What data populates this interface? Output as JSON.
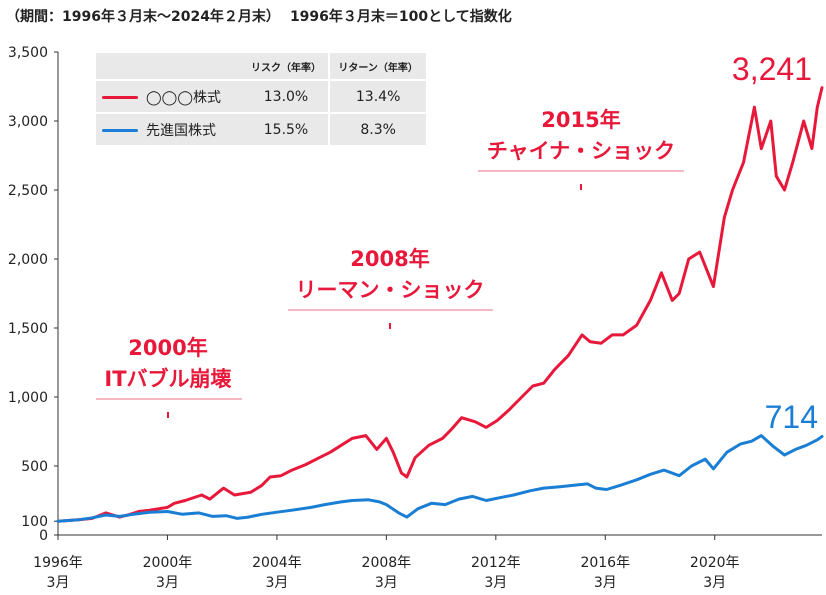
{
  "header": {
    "period": "（期間：1996年３月末〜2024年２月末）",
    "base": "1996年３月末＝100として指数化"
  },
  "legend": {
    "col_risk": "リスク（年率）",
    "col_return": "リターン（年率）",
    "rows": [
      {
        "name": "◯◯◯株式",
        "risk": "13.0%",
        "ret": "13.4%",
        "color": "#e8183a"
      },
      {
        "name": "先進国株式",
        "risk": "15.5%",
        "ret": "8.3%",
        "color": "#1a7fd4"
      }
    ]
  },
  "annotations": [
    {
      "line1": "2000年",
      "line2": "ITバブル崩壊"
    },
    {
      "line1": "2008年",
      "line2": "リーマン・ショック"
    },
    {
      "line1": "2015年",
      "line2": "チャイナ・ショック"
    }
  ],
  "end_labels": {
    "red": "3,241",
    "blue": "714"
  },
  "chart_data": {
    "type": "line",
    "ylim": [
      0,
      3500
    ],
    "yticks": [
      0,
      100,
      500,
      1000,
      1500,
      2000,
      2500,
      3000,
      3500
    ],
    "ytick_labels": [
      "0",
      "100",
      "500",
      "1,000",
      "1,500",
      "2,000",
      "2,500",
      "3,000",
      "3,500"
    ],
    "xticks": [
      1996.25,
      2000.25,
      2004.25,
      2008.25,
      2012.25,
      2016.25,
      2020.25
    ],
    "xtick_labels": [
      [
        "1996年",
        "3月"
      ],
      [
        "2000年",
        "3月"
      ],
      [
        "2004年",
        "3月"
      ],
      [
        "2008年",
        "3月"
      ],
      [
        "2012年",
        "3月"
      ],
      [
        "2016年",
        "3月"
      ],
      [
        "2020年",
        "3月"
      ]
    ],
    "xlim": [
      1996.25,
      2024.17
    ],
    "series": [
      {
        "name": "◯◯◯株式",
        "color": "#e8183a",
        "x": [
          1996.25,
          1997.0,
          1997.5,
          1998.0,
          1998.5,
          1998.8,
          1999.2,
          1999.6,
          2000.25,
          2000.5,
          2000.9,
          2001.5,
          2001.8,
          2002.3,
          2002.7,
          2003.0,
          2003.3,
          2003.7,
          2004.0,
          2004.4,
          2004.8,
          2005.3,
          2005.8,
          2006.2,
          2006.6,
          2007.0,
          2007.5,
          2007.9,
          2008.25,
          2008.5,
          2008.8,
          2009.0,
          2009.3,
          2009.8,
          2010.3,
          2010.6,
          2011.0,
          2011.5,
          2011.9,
          2012.3,
          2012.7,
          2013.2,
          2013.6,
          2014.0,
          2014.4,
          2014.9,
          2015.4,
          2015.7,
          2016.1,
          2016.5,
          2016.9,
          2017.4,
          2017.9,
          2018.3,
          2018.7,
          2018.95,
          2019.3,
          2019.7,
          2020.2,
          2020.6,
          2020.9,
          2021.3,
          2021.7,
          2021.95,
          2022.3,
          2022.5,
          2022.8,
          2023.1,
          2023.5,
          2023.8,
          2024.0,
          2024.17
        ],
        "values": [
          100,
          110,
          120,
          160,
          130,
          145,
          170,
          180,
          200,
          230,
          250,
          290,
          260,
          340,
          290,
          300,
          310,
          360,
          420,
          430,
          470,
          510,
          560,
          600,
          650,
          700,
          720,
          620,
          700,
          600,
          450,
          420,
          560,
          650,
          700,
          760,
          850,
          820,
          780,
          830,
          900,
          1000,
          1080,
          1100,
          1200,
          1300,
          1450,
          1400,
          1390,
          1450,
          1450,
          1520,
          1700,
          1900,
          1700,
          1750,
          2000,
          2050,
          1800,
          2300,
          2500,
          2700,
          3100,
          2800,
          3000,
          2600,
          2500,
          2700,
          3000,
          2800,
          3100,
          3241
        ]
      },
      {
        "name": "先進国株式",
        "color": "#1a7fd4",
        "x": [
          1996.25,
          1997.0,
          1997.5,
          1998.0,
          1998.5,
          1999.0,
          1999.6,
          2000.25,
          2000.8,
          2001.4,
          2001.9,
          2002.4,
          2002.8,
          2003.2,
          2003.7,
          2004.25,
          2004.8,
          2005.5,
          2006.0,
          2006.6,
          2007.0,
          2007.6,
          2008.0,
          2008.25,
          2008.7,
          2009.0,
          2009.4,
          2009.9,
          2010.4,
          2010.9,
          2011.4,
          2011.9,
          2012.4,
          2012.9,
          2013.5,
          2014.0,
          2014.6,
          2015.1,
          2015.6,
          2015.9,
          2016.3,
          2016.8,
          2017.4,
          2017.9,
          2018.4,
          2018.95,
          2019.4,
          2019.9,
          2020.2,
          2020.7,
          2021.2,
          2021.6,
          2021.95,
          2022.4,
          2022.8,
          2023.2,
          2023.6,
          2024.0,
          2024.17
        ],
        "values": [
          100,
          110,
          125,
          145,
          135,
          150,
          165,
          170,
          150,
          160,
          135,
          140,
          120,
          130,
          150,
          165,
          180,
          200,
          220,
          240,
          250,
          255,
          240,
          220,
          160,
          130,
          190,
          230,
          220,
          260,
          280,
          250,
          270,
          290,
          320,
          340,
          350,
          360,
          370,
          340,
          330,
          360,
          400,
          440,
          470,
          430,
          500,
          550,
          480,
          600,
          660,
          680,
          720,
          640,
          580,
          620,
          650,
          690,
          714
        ]
      }
    ]
  }
}
